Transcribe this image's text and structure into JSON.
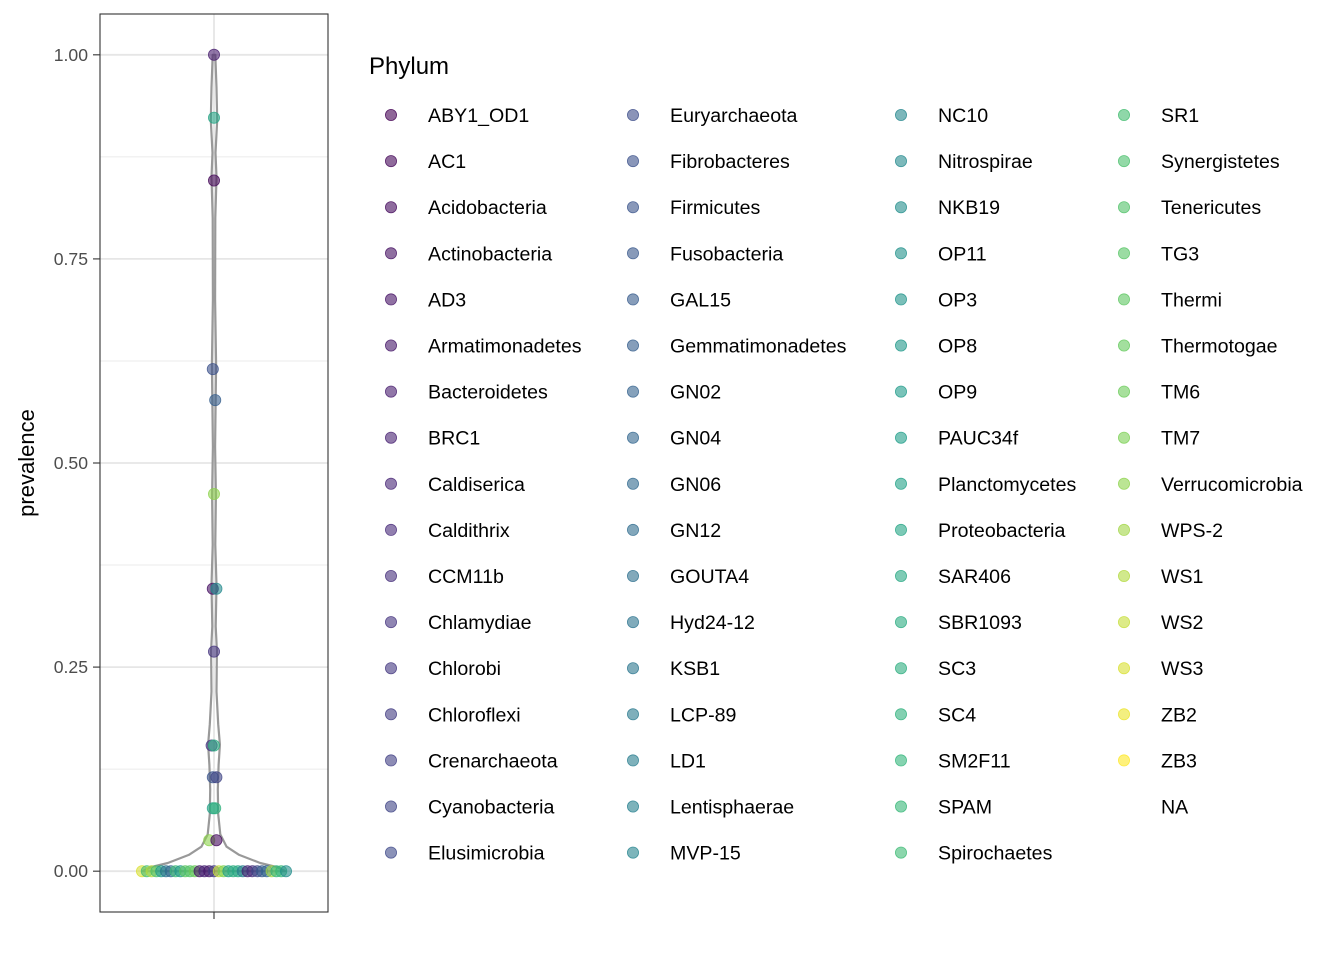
{
  "chart_data": {
    "type": "scatter",
    "subtype": "violin-with-jitter",
    "title": "",
    "xlabel": "",
    "ylabel": "prevalence",
    "ylim": [
      -0.05,
      1.05
    ],
    "y_ticks": [
      {
        "value": 0.0,
        "label": "0.00"
      },
      {
        "value": 0.25,
        "label": "0.25"
      },
      {
        "value": 0.5,
        "label": "0.50"
      },
      {
        "value": 0.75,
        "label": "0.75"
      },
      {
        "value": 1.0,
        "label": "1.00"
      }
    ],
    "y_minor_gridlines": [
      0.125,
      0.375,
      0.625,
      0.875
    ],
    "grid": true,
    "violin_color": "#999999",
    "violin_density": [
      [
        0.0,
        0.34
      ],
      [
        0.005,
        0.3
      ],
      [
        0.01,
        0.22
      ],
      [
        0.02,
        0.12
      ],
      [
        0.03,
        0.06
      ],
      [
        0.045,
        0.03
      ],
      [
        0.07,
        0.02
      ],
      [
        0.1,
        0.018
      ],
      [
        0.13,
        0.022
      ],
      [
        0.155,
        0.028
      ],
      [
        0.18,
        0.02
      ],
      [
        0.22,
        0.012
      ],
      [
        0.27,
        0.014
      ],
      [
        0.3,
        0.008
      ],
      [
        0.35,
        0.012
      ],
      [
        0.4,
        0.006
      ],
      [
        0.46,
        0.009
      ],
      [
        0.52,
        0.005
      ],
      [
        0.58,
        0.008
      ],
      [
        0.62,
        0.01
      ],
      [
        0.7,
        0.005
      ],
      [
        0.8,
        0.006
      ],
      [
        0.85,
        0.012
      ],
      [
        0.88,
        0.007
      ],
      [
        0.92,
        0.015
      ],
      [
        0.96,
        0.012
      ],
      [
        1.0,
        0.006
      ]
    ],
    "points": [
      {
        "phylum": "WS3",
        "x": -0.3,
        "y": 0.0
      },
      {
        "phylum": "SR1",
        "x": -0.28,
        "y": 0.0
      },
      {
        "phylum": "WS1",
        "x": -0.26,
        "y": 0.0
      },
      {
        "phylum": "Synergistetes",
        "x": -0.24,
        "y": 0.0
      },
      {
        "phylum": "OP9",
        "x": -0.22,
        "y": 0.0
      },
      {
        "phylum": "Hyd24-12",
        "x": -0.2,
        "y": 0.0
      },
      {
        "phylum": "GN06",
        "x": -0.18,
        "y": 0.0
      },
      {
        "phylum": "Spirochaetes",
        "x": -0.16,
        "y": 0.0
      },
      {
        "phylum": "OP8",
        "x": -0.14,
        "y": 0.0
      },
      {
        "phylum": "Thermi",
        "x": -0.12,
        "y": 0.0
      },
      {
        "phylum": "Tenericutes",
        "x": -0.1,
        "y": 0.0
      },
      {
        "phylum": "TM6",
        "x": -0.08,
        "y": 0.0
      },
      {
        "phylum": "AD3",
        "x": -0.06,
        "y": 0.0
      },
      {
        "phylum": "Caldiserica",
        "x": -0.04,
        "y": 0.0
      },
      {
        "phylum": "Armatimonadetes",
        "x": -0.02,
        "y": 0.0
      },
      {
        "phylum": "Chloroflexi",
        "x": 0.0,
        "y": 0.0
      },
      {
        "phylum": "WS2",
        "x": 0.02,
        "y": 0.0
      },
      {
        "phylum": "TM7",
        "x": 0.04,
        "y": 0.0
      },
      {
        "phylum": "PAUC34f",
        "x": 0.06,
        "y": 0.0
      },
      {
        "phylum": "SC3",
        "x": 0.08,
        "y": 0.0
      },
      {
        "phylum": "SAR406",
        "x": 0.1,
        "y": 0.0
      },
      {
        "phylum": "LD1",
        "x": 0.12,
        "y": 0.0
      },
      {
        "phylum": "BRC1",
        "x": 0.14,
        "y": 0.0
      },
      {
        "phylum": "CCM11b",
        "x": 0.16,
        "y": 0.0
      },
      {
        "phylum": "Elusimicrobia",
        "x": 0.18,
        "y": 0.0
      },
      {
        "phylum": "GAL15",
        "x": 0.2,
        "y": 0.0
      },
      {
        "phylum": "GN04",
        "x": 0.22,
        "y": 0.0
      },
      {
        "phylum": "WPS-2",
        "x": 0.24,
        "y": 0.0
      },
      {
        "phylum": "SM2F11",
        "x": 0.26,
        "y": 0.0
      },
      {
        "phylum": "SPAM",
        "x": 0.28,
        "y": 0.0
      },
      {
        "phylum": "NKB19",
        "x": 0.3,
        "y": 0.0
      },
      {
        "phylum": "Verrucomicrobia",
        "x": -0.02,
        "y": 0.038
      },
      {
        "phylum": "Acidobacteria",
        "x": 0.01,
        "y": 0.038
      },
      {
        "phylum": "Planctomycetes",
        "x": -0.005,
        "y": 0.077
      },
      {
        "phylum": "SC4",
        "x": 0.005,
        "y": 0.077
      },
      {
        "phylum": "Firmicutes",
        "x": -0.005,
        "y": 0.115
      },
      {
        "phylum": "Cyanobacteria",
        "x": 0.01,
        "y": 0.115
      },
      {
        "phylum": "Chlorobi",
        "x": -0.01,
        "y": 0.154
      },
      {
        "phylum": "SBR1093",
        "x": 0.0,
        "y": 0.154
      },
      {
        "phylum": "Chlamydiae",
        "x": 0.0,
        "y": 0.269
      },
      {
        "phylum": "Actinobacteria",
        "x": -0.005,
        "y": 0.346
      },
      {
        "phylum": "Nitrospirae",
        "x": 0.01,
        "y": 0.346
      },
      {
        "phylum": "Verrucomicrobia",
        "x": 0.0,
        "y": 0.462
      },
      {
        "phylum": "Gemmatimonadetes",
        "x": 0.005,
        "y": 0.577
      },
      {
        "phylum": "Fibrobacteres",
        "x": -0.005,
        "y": 0.615
      },
      {
        "phylum": "AC1",
        "x": 0.0,
        "y": 0.846
      },
      {
        "phylum": "Proteobacteria",
        "x": 0.0,
        "y": 0.923
      },
      {
        "phylum": "Bacteroidetes",
        "x": 0.0,
        "y": 1.0
      }
    ],
    "legend": {
      "title": "Phylum",
      "placement": "right",
      "columns": 4,
      "entries": [
        "ABY1_OD1",
        "AC1",
        "Acidobacteria",
        "Actinobacteria",
        "AD3",
        "Armatimonadetes",
        "Bacteroidetes",
        "BRC1",
        "Caldiserica",
        "Caldithrix",
        "CCM11b",
        "Chlamydiae",
        "Chlorobi",
        "Chloroflexi",
        "Crenarchaeota",
        "Cyanobacteria",
        "Elusimicrobia",
        "Euryarchaeota",
        "Fibrobacteres",
        "Firmicutes",
        "Fusobacteria",
        "GAL15",
        "Gemmatimonadetes",
        "GN02",
        "GN04",
        "GN06",
        "GN12",
        "GOUTA4",
        "Hyd24-12",
        "KSB1",
        "LCP-89",
        "LD1",
        "Lentisphaerae",
        "MVP-15",
        "NC10",
        "Nitrospirae",
        "NKB19",
        "OP11",
        "OP3",
        "OP8",
        "OP9",
        "PAUC34f",
        "Planctomycetes",
        "Proteobacteria",
        "SAR406",
        "SBR1093",
        "SC3",
        "SC4",
        "SM2F11",
        "SPAM",
        "Spirochaetes",
        "SR1",
        "Synergistetes",
        "Tenericutes",
        "TG3",
        "Thermi",
        "Thermotogae",
        "TM6",
        "TM7",
        "Verrucomicrobia",
        "WPS-2",
        "WS1",
        "WS2",
        "WS3",
        "ZB2",
        "ZB3",
        "NA"
      ],
      "na_entry": "NA"
    },
    "colors": {
      "palette": "viridis",
      "start": "#440154",
      "end": "#FDE725",
      "point_alpha": 0.6
    }
  }
}
